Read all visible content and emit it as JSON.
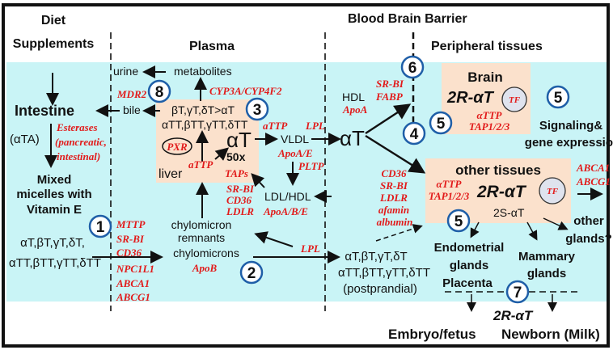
{
  "colors": {
    "band": "#c9f4f6",
    "box": "#fbe1cc",
    "red": "#e21b1b",
    "circle": "#1f5fa8",
    "tf": "#dfe3ee"
  },
  "headers": {
    "diet": "Diet",
    "supplements": "Supplements",
    "plasma": "Plasma",
    "bbb": "Blood Brain Barrier",
    "peripheral": "Peripheral tissues"
  },
  "left": {
    "intestine": "Intestine",
    "ata": "(αTA)",
    "esterases": [
      "Esterases",
      "(pancreatic,",
      "intestinal)"
    ],
    "micelles": [
      "Mixed",
      "micelles with",
      "Vitamin E"
    ],
    "forms": [
      "αT,βT,γT,δT,",
      "αTT,βTT,γTT,δTT"
    ],
    "transporters": [
      "MTTP",
      "SR-BI",
      "CD36",
      "NPC1L1",
      "ABCA1",
      "ABCG1"
    ]
  },
  "plasma": {
    "urine": "urine",
    "metabolites": "metabolites",
    "cyp": "CYP3A/CYP4F2",
    "mdr2": "MDR2",
    "bile": "bile",
    "liver_forms": [
      "βT,γT,δT>αT",
      "αTT,βTT,γTT,δTT"
    ],
    "pxr": "PXR",
    "at": "αT",
    "fifty": "50x",
    "attp": "aTTP",
    "liver": "liver",
    "taps": "TAPs",
    "attp2": "aTTP",
    "vldl": "VLDL",
    "lpl": "LPL",
    "apoae": "ApoA/E",
    "pltp": "PLTP",
    "ldlhdl": "LDL/HDL",
    "receptors": [
      "SR-BI",
      "CD36",
      "LDLR"
    ],
    "apoabe": "ApoA/B/E",
    "remnants": [
      "chylomicron",
      "remnants"
    ],
    "chylo": "chylomicrons",
    "apob": "ApoB",
    "lpl2": "LPL"
  },
  "right": {
    "hdl": "HDL",
    "apoa": "ApoA",
    "bbb_tr": [
      "SR-BI",
      "FABP"
    ],
    "at": "αT",
    "brain": "Brain",
    "brain_2r": "2R-αT",
    "tf": "TF",
    "brain_tr": [
      "αTTP",
      "TAP1/2/3"
    ],
    "signaling": [
      "Signaling&",
      "gene expression"
    ],
    "other": "other tissues",
    "other_2r": "2R-αT",
    "other_tr": [
      "αTTP",
      "TAP1/2/3"
    ],
    "two_s": "2S-αT",
    "abc": [
      "ABCA1",
      "ABCG1"
    ],
    "uptake": [
      "CD36",
      "SR-BI",
      "LDLR",
      "afamin",
      "albumin"
    ],
    "post": [
      "αT,βT,γT,δT",
      "αTT,βTT,γTT,δTT",
      "(postprandial)"
    ],
    "endo": [
      "Endometrial",
      "glands",
      "Placenta"
    ],
    "mammary": [
      "Mammary",
      "glands"
    ],
    "other_glands": [
      "other",
      "glands?"
    ],
    "milk_2r": "2R-αT",
    "embryo": "Embryo/fetus",
    "newborn": "Newborn (Milk)"
  },
  "steps": [
    "1",
    "2",
    "3",
    "4",
    "5",
    "5",
    "5",
    "6",
    "7",
    "8"
  ]
}
